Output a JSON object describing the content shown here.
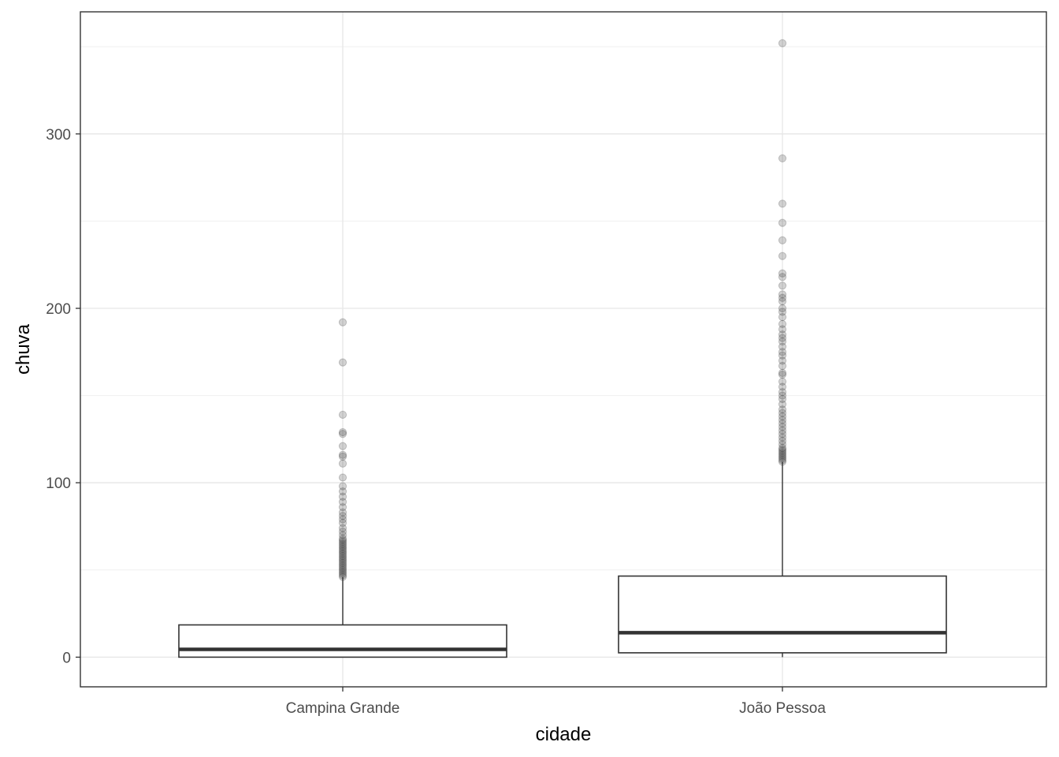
{
  "chart_data": {
    "type": "boxplot",
    "xlabel": "cidade",
    "ylabel": "chuva",
    "categories": [
      "Campina Grande",
      "João Pessoa"
    ],
    "y_ticks": [
      0,
      100,
      200,
      300
    ],
    "y_tick_labels": [
      "0",
      "100",
      "200",
      "300"
    ],
    "ylim": [
      -17,
      370
    ],
    "grid": true,
    "boxes": [
      {
        "category": "Campina Grande",
        "min": 0,
        "q1": 0,
        "median": 4.5,
        "q3": 18.5,
        "whisker_high": 46,
        "outliers": [
          46,
          47,
          48,
          49,
          50,
          51,
          52,
          53,
          54,
          55,
          56,
          57,
          58,
          59,
          60,
          61,
          62,
          63,
          64,
          65,
          66,
          67,
          68,
          70,
          72,
          74,
          77,
          79,
          81,
          83,
          86,
          89,
          92,
          95,
          98,
          103,
          111,
          115,
          116,
          121,
          128,
          129,
          139,
          169,
          192
        ]
      },
      {
        "category": "João Pessoa",
        "min": 0,
        "q1": 2.5,
        "median": 14,
        "q3": 46.5,
        "whisker_high": 112,
        "outliers": [
          112,
          113,
          114,
          115,
          116,
          117,
          118,
          119,
          120,
          122,
          124,
          126,
          128,
          130,
          132,
          134,
          136,
          138,
          140,
          142,
          145,
          148,
          150,
          152,
          155,
          158,
          162,
          163,
          167,
          170,
          173,
          175,
          178,
          181,
          183,
          185,
          188,
          191,
          195,
          198,
          200,
          204,
          206,
          208,
          213,
          218,
          220,
          230,
          239,
          249,
          260,
          286,
          352
        ]
      }
    ]
  }
}
